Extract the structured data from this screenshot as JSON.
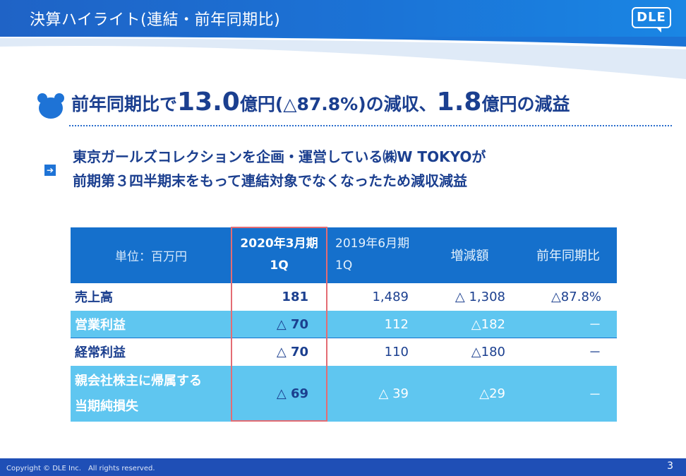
{
  "header": {
    "title": "決算ハイライト(連結・前年同期比)",
    "logo_text": "DLE"
  },
  "headline": {
    "part1": "前年同期比で",
    "value1": "13.0",
    "part2": "億円(△87.8%)の減収、",
    "value2": "1.8",
    "part3": "億円の減益"
  },
  "lead": {
    "line1": "東京ガールズコレクションを企画・運営している㈱W TOKYOが",
    "line2": "前期第３四半期末をもって連結対象でなくなったため減収減益"
  },
  "table": {
    "header": {
      "unit": "単位：百万円",
      "current_line1": "2020年3月期",
      "current_line2": "1Q",
      "prior_line1": "2019年6月期",
      "prior_line2": "1Q",
      "change": "増減額",
      "yoy": "前年同期比"
    },
    "rows": [
      {
        "label": "売上高",
        "current": "181",
        "prior": "1,489",
        "change": "△ 1,308",
        "yoy": "△87.8%"
      },
      {
        "label": "営業利益",
        "current": "△ 70",
        "prior": "112",
        "change": "△182",
        "yoy": "－"
      },
      {
        "label": "経常利益",
        "current": "△ 70",
        "prior": "110",
        "change": "△180",
        "yoy": "－"
      },
      {
        "label_line1": "親会社株主に帰属する",
        "label_line2": "当期純損失",
        "current": "△ 69",
        "prior": "△ 39",
        "change": "△29",
        "yoy": "－"
      }
    ]
  },
  "footer": {
    "copyright": "Copyright © DLE Inc.　All rights reserved.",
    "page_number": "3"
  },
  "colors": {
    "header_blue": "#1b73d6",
    "table_header_blue": "#1570cc",
    "row_light_blue": "#5fc6f0",
    "text_navy": "#1b3f8f",
    "highlight_red": "#e46c73",
    "footer_blue": "#1f4fb6"
  },
  "icons": {
    "bear": "bear-face-icon",
    "arrow": "arrow-right-icon"
  }
}
